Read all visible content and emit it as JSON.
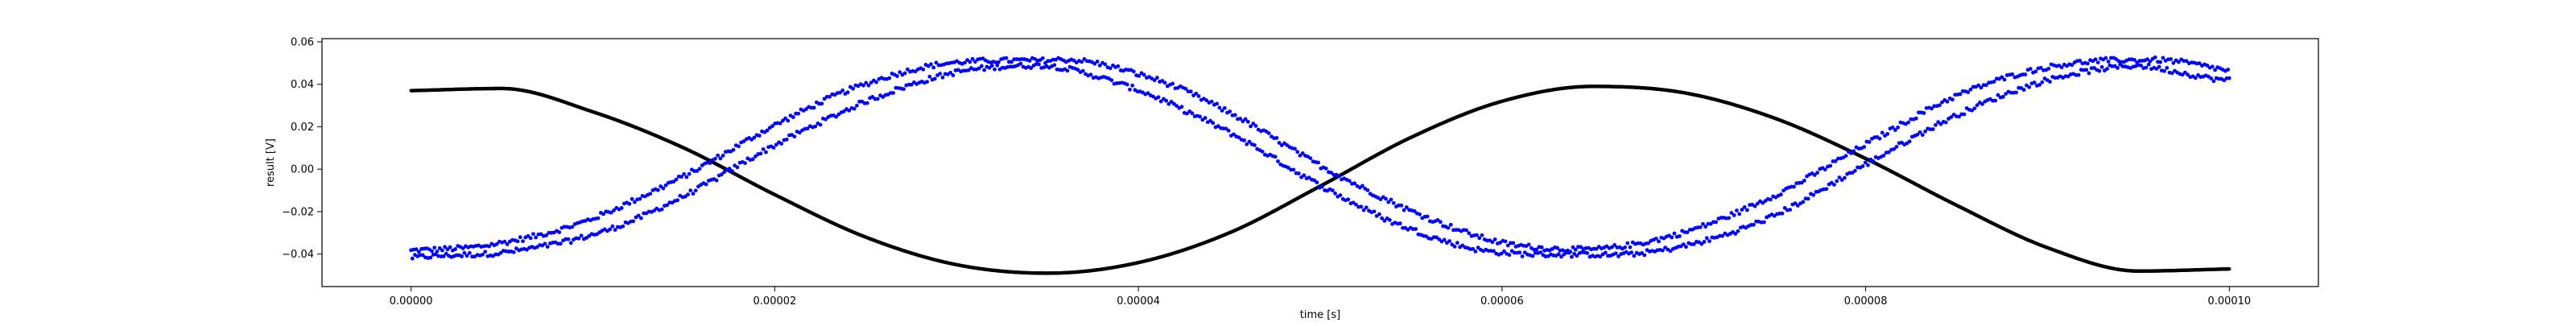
{
  "chart_data": {
    "type": "scatter",
    "title": "",
    "xlabel": "time [s]",
    "ylabel": "result [V]",
    "xlim": [
      -4.9e-06,
      0.0001049
    ],
    "ylim": [
      -0.0553,
      0.0615
    ],
    "x_ticks": [
      0.0,
      2e-05,
      4e-05,
      6e-05,
      8e-05,
      0.0001
    ],
    "x_tick_labels": [
      "0.00000",
      "0.00002",
      "0.00004",
      "0.00006",
      "0.00008",
      "0.00010"
    ],
    "y_ticks": [
      -0.04,
      -0.02,
      0.0,
      0.02,
      0.04,
      0.06
    ],
    "y_tick_labels": [
      "−0.04",
      "−0.02",
      "0.00",
      "0.02",
      "0.04",
      "0.06"
    ],
    "grid": false,
    "legend": "none",
    "x_range": [
      0.0,
      0.0001
    ],
    "series": [
      {
        "color": "#000000",
        "marker": "dot",
        "x": [
          0.0,
          5e-06,
          1e-05,
          1.5e-05,
          2e-05,
          2.5e-05,
          3e-05,
          3.5e-05,
          4e-05,
          4.5e-05,
          5e-05,
          5.5e-05,
          6e-05,
          6.5e-05,
          7e-05,
          7.5e-05,
          8e-05,
          8.5e-05,
          9e-05,
          9.5e-05,
          0.0001
        ],
        "y": [
          0.037,
          0.038,
          0.027,
          0.01,
          -0.012,
          -0.032,
          -0.045,
          -0.049,
          -0.044,
          -0.03,
          -0.008,
          0.015,
          0.032,
          0.039,
          0.036,
          0.024,
          0.005,
          -0.017,
          -0.037,
          -0.048,
          -0.047
        ]
      },
      {
        "color": "#0000ff",
        "marker": "dot",
        "x": [
          0.0,
          5e-06,
          1e-05,
          1.5e-05,
          2e-05,
          2.5e-05,
          3e-05,
          3.5e-05,
          4e-05,
          4.5e-05,
          5e-05,
          5.5e-05,
          6e-05,
          6.5e-05,
          7e-05,
          7.5e-05,
          8e-05,
          8.5e-05,
          9e-05,
          9.5e-05,
          0.0001
        ],
        "y": [
          -0.04,
          -0.037,
          -0.027,
          -0.008,
          0.016,
          0.036,
          0.048,
          0.05,
          0.041,
          0.022,
          -0.003,
          -0.024,
          -0.037,
          -0.039,
          -0.033,
          -0.017,
          0.007,
          0.03,
          0.045,
          0.05,
          0.044
        ]
      }
    ]
  }
}
